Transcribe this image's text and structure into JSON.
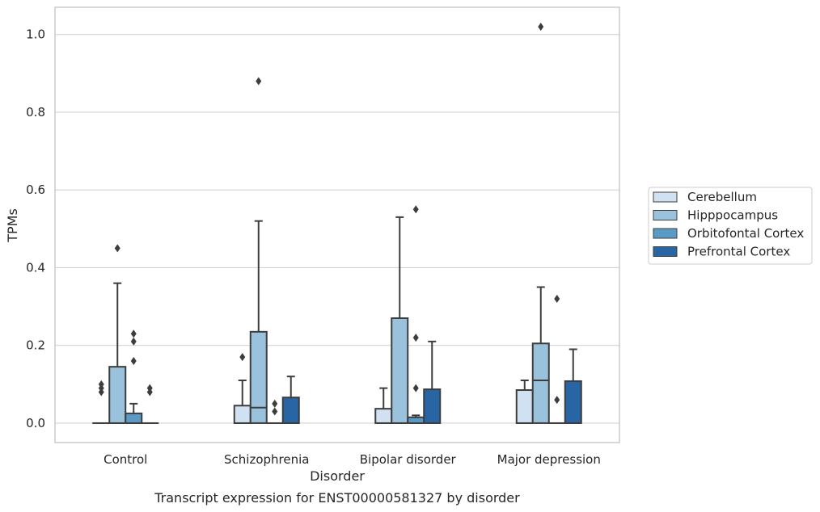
{
  "chart_data": {
    "type": "box",
    "title": "",
    "caption": "Transcript expression for ENST00000581327 by disorder",
    "xlabel": "Disorder",
    "ylabel": "TPMs",
    "ylim": [
      -0.05,
      1.07
    ],
    "yticks": [
      "0.0",
      "0.2",
      "0.4",
      "0.6",
      "0.8",
      "1.0"
    ],
    "grid": true,
    "legend_position": "right",
    "categories": [
      "Control",
      "Schizophrenia",
      "Bipolar disorder",
      "Major depression"
    ],
    "series": [
      {
        "name": "Cerebellum",
        "color": "#d0e1f2",
        "boxes": [
          {
            "category": "Control",
            "q1": 0,
            "median": 0,
            "q3": 0,
            "whisker_low": 0,
            "whisker_high": 0,
            "outliers": [
              0.08,
              0.09,
              0.1
            ]
          },
          {
            "category": "Schizophrenia",
            "q1": 0,
            "median": 0,
            "q3": 0.045,
            "whisker_low": 0,
            "whisker_high": 0.11,
            "outliers": [
              0.17
            ]
          },
          {
            "category": "Bipolar disorder",
            "q1": 0,
            "median": 0,
            "q3": 0.037,
            "whisker_low": 0,
            "whisker_high": 0.09,
            "outliers": []
          },
          {
            "category": "Major depression",
            "q1": 0,
            "median": 0,
            "q3": 0.085,
            "whisker_low": 0,
            "whisker_high": 0.11,
            "outliers": []
          }
        ]
      },
      {
        "name": "Hipppocampus",
        "color": "#9ac2dc",
        "boxes": [
          {
            "category": "Control",
            "q1": 0,
            "median": 0,
            "q3": 0.145,
            "whisker_low": 0,
            "whisker_high": 0.36,
            "outliers": [
              0.45
            ]
          },
          {
            "category": "Schizophrenia",
            "q1": 0,
            "median": 0.04,
            "q3": 0.235,
            "whisker_low": 0,
            "whisker_high": 0.52,
            "outliers": [
              0.88
            ]
          },
          {
            "category": "Bipolar disorder",
            "q1": 0,
            "median": 0,
            "q3": 0.27,
            "whisker_low": 0,
            "whisker_high": 0.53,
            "outliers": []
          },
          {
            "category": "Major depression",
            "q1": 0,
            "median": 0.11,
            "q3": 0.205,
            "whisker_low": 0,
            "whisker_high": 0.35,
            "outliers": [
              1.02
            ]
          }
        ]
      },
      {
        "name": "Orbitofontal Cortex",
        "color": "#5a9ac6",
        "boxes": [
          {
            "category": "Control",
            "q1": 0,
            "median": 0,
            "q3": 0.025,
            "whisker_low": 0,
            "whisker_high": 0.05,
            "outliers": [
              0.16,
              0.21,
              0.23
            ]
          },
          {
            "category": "Schizophrenia",
            "q1": 0,
            "median": 0,
            "q3": 0,
            "whisker_low": 0,
            "whisker_high": 0,
            "outliers": [
              0.03,
              0.05
            ]
          },
          {
            "category": "Bipolar disorder",
            "q1": 0,
            "median": 0,
            "q3": 0.015,
            "whisker_low": 0,
            "whisker_high": 0.02,
            "outliers": [
              0.09,
              0.22,
              0.55
            ]
          },
          {
            "category": "Major depression",
            "q1": 0,
            "median": 0,
            "q3": 0,
            "whisker_low": 0,
            "whisker_high": 0,
            "outliers": [
              0.06,
              0.32
            ]
          }
        ]
      },
      {
        "name": "Prefrontal Cortex",
        "color": "#2865a5",
        "boxes": [
          {
            "category": "Control",
            "q1": 0,
            "median": 0,
            "q3": 0,
            "whisker_low": 0,
            "whisker_high": 0,
            "outliers": [
              0.08,
              0.09
            ]
          },
          {
            "category": "Schizophrenia",
            "q1": 0,
            "median": 0,
            "q3": 0.066,
            "whisker_low": 0,
            "whisker_high": 0.12,
            "outliers": []
          },
          {
            "category": "Bipolar disorder",
            "q1": 0,
            "median": 0,
            "q3": 0.087,
            "whisker_low": 0,
            "whisker_high": 0.21,
            "outliers": []
          },
          {
            "category": "Major depression",
            "q1": 0,
            "median": 0,
            "q3": 0.108,
            "whisker_low": 0,
            "whisker_high": 0.19,
            "outliers": []
          }
        ]
      }
    ]
  }
}
